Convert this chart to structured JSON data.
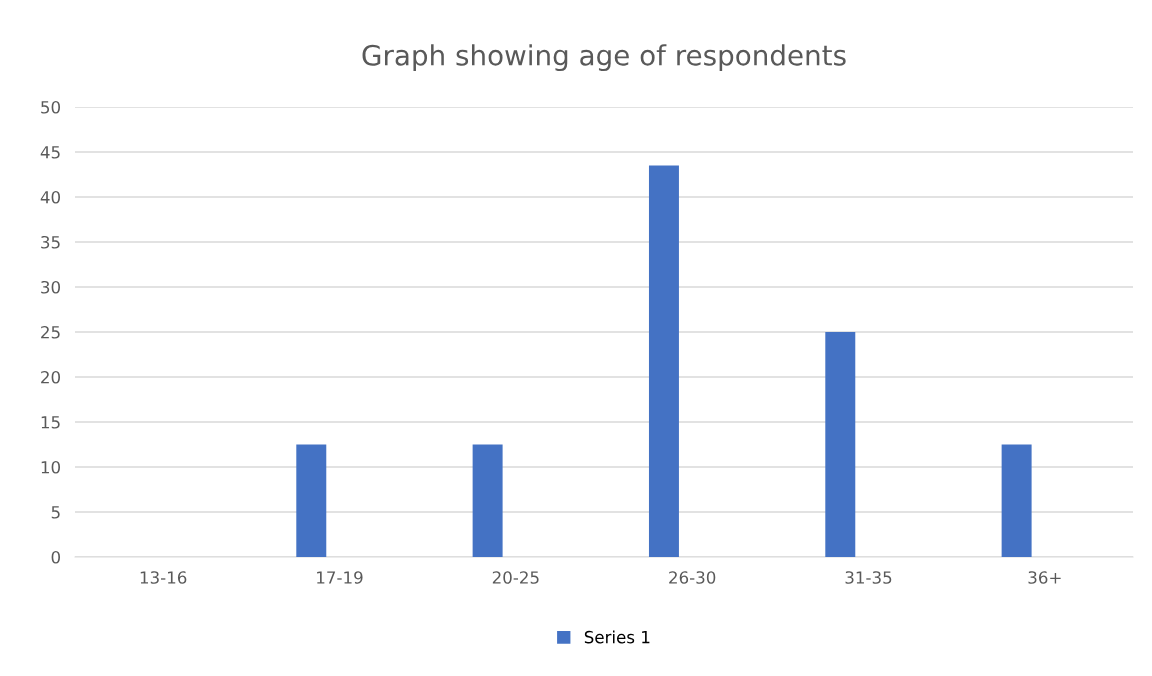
{
  "chart_data": {
    "type": "bar",
    "title": "Graph showing age of respondents",
    "categories": [
      "13-16",
      "17-19",
      "20-25",
      "26-30",
      "31-35",
      "36+"
    ],
    "series": [
      {
        "name": "Series 1",
        "color": "#4472c4",
        "values": [
          0,
          12.5,
          12.5,
          43.5,
          25,
          12.5
        ]
      }
    ],
    "ylim": [
      0,
      50
    ],
    "yticks": [
      0,
      5,
      10,
      15,
      20,
      25,
      30,
      35,
      40,
      45,
      50
    ],
    "grid": "y",
    "legend": "bottom"
  }
}
